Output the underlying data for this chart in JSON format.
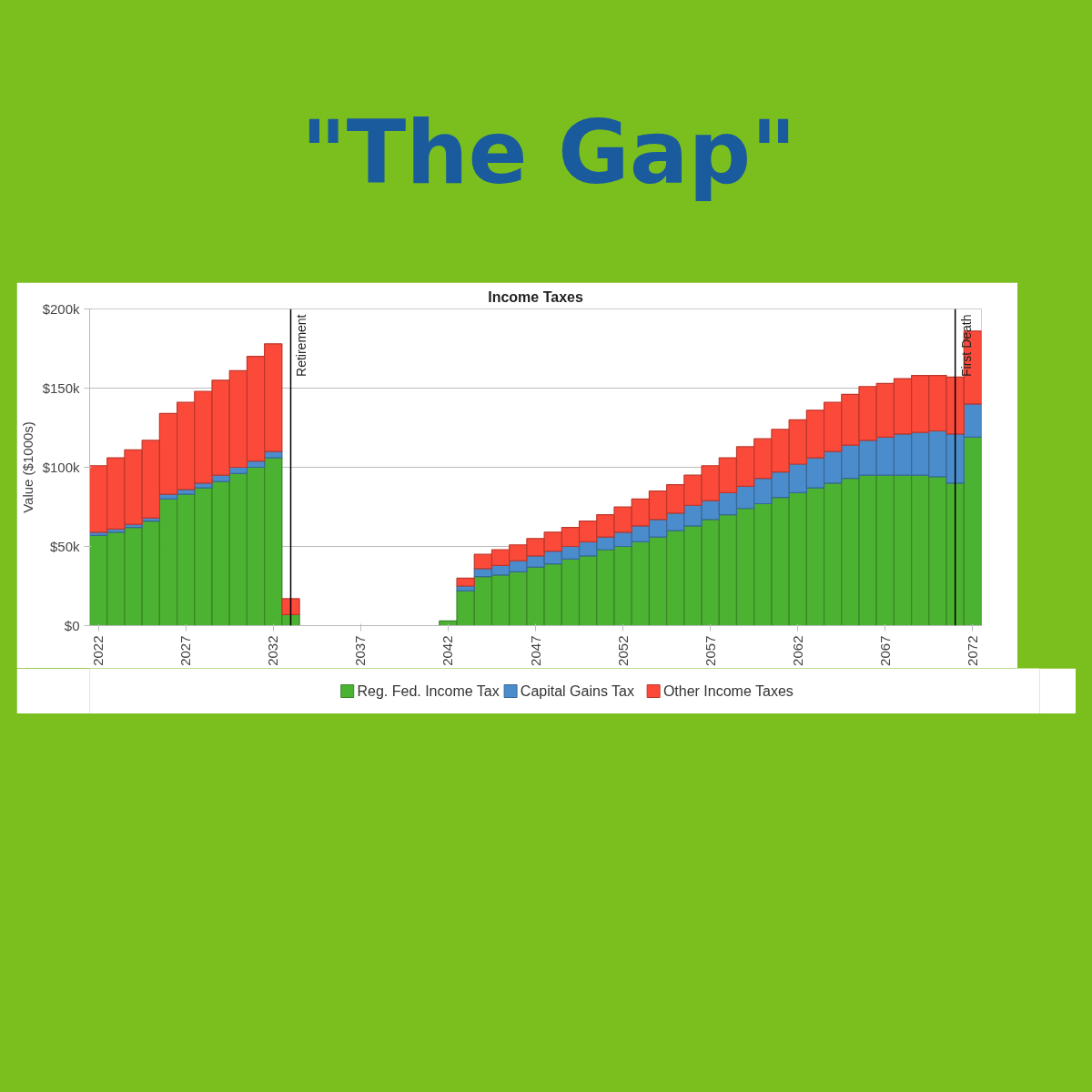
{
  "chart_data": {
    "type": "bar",
    "title": "\"The Gap\"",
    "subtitle": "Income Taxes",
    "ylabel": "Value ($1000s)",
    "stacked": true,
    "x": [
      2022,
      2023,
      2024,
      2025,
      2026,
      2027,
      2028,
      2029,
      2030,
      2031,
      2032,
      2033,
      2034,
      2035,
      2036,
      2037,
      2038,
      2039,
      2040,
      2041,
      2042,
      2043,
      2044,
      2045,
      2046,
      2047,
      2048,
      2049,
      2050,
      2051,
      2052,
      2053,
      2054,
      2055,
      2056,
      2057,
      2058,
      2059,
      2060,
      2061,
      2062,
      2063,
      2064,
      2065,
      2066,
      2067,
      2068,
      2069,
      2070,
      2071,
      2072
    ],
    "series": [
      {
        "name": "Reg. Fed. Income Tax",
        "color": "#4cb232",
        "values": [
          57,
          59,
          62,
          66,
          80,
          83,
          87,
          91,
          96,
          100,
          106,
          7,
          null,
          null,
          null,
          null,
          null,
          null,
          null,
          null,
          3,
          22,
          31,
          32,
          34,
          37,
          39,
          42,
          44,
          48,
          50,
          53,
          56,
          60,
          63,
          67,
          70,
          74,
          77,
          81,
          84,
          87,
          90,
          93,
          95,
          95,
          95,
          95,
          94,
          90,
          119
        ]
      },
      {
        "name": "Capital Gains Tax",
        "color": "#4a8ccc",
        "values": [
          2,
          2,
          2,
          2,
          3,
          3,
          3,
          4,
          4,
          4,
          4,
          null,
          null,
          null,
          null,
          null,
          null,
          null,
          null,
          null,
          null,
          3,
          5,
          6,
          7,
          7,
          8,
          8,
          9,
          8,
          9,
          10,
          11,
          11,
          13,
          12,
          14,
          14,
          16,
          16,
          18,
          19,
          20,
          21,
          22,
          24,
          26,
          27,
          29,
          31,
          21
        ]
      },
      {
        "name": "Other Income Taxes",
        "color": "#fc4a3a",
        "values": [
          42,
          45,
          47,
          49,
          51,
          55,
          58,
          60,
          61,
          66,
          68,
          10,
          null,
          null,
          null,
          null,
          null,
          null,
          null,
          null,
          null,
          5,
          9,
          10,
          10,
          11,
          12,
          12,
          13,
          14,
          16,
          17,
          18,
          18,
          19,
          22,
          22,
          25,
          25,
          27,
          28,
          30,
          31,
          32,
          34,
          34,
          35,
          36,
          35,
          36,
          46
        ]
      }
    ],
    "xlim": [
      2021.5,
      2072.5
    ],
    "xticks": [
      2022,
      2027,
      2032,
      2037,
      2042,
      2047,
      2052,
      2057,
      2062,
      2067,
      2072
    ],
    "ylim": [
      0,
      200
    ],
    "yticks": [
      {
        "value": 0,
        "label": "$0"
      },
      {
        "value": 50,
        "label": "$50k"
      },
      {
        "value": 100,
        "label": "$100k"
      },
      {
        "value": 150,
        "label": "$150k"
      },
      {
        "value": 200,
        "label": "$200k"
      }
    ],
    "grid": "y",
    "legend": "bottom",
    "ref_lines": [
      {
        "axis": "x",
        "value": 2033,
        "label": "Retirement",
        "color": "#000000"
      },
      {
        "axis": "x",
        "value": 2071,
        "label": "First Death",
        "color": "#000000"
      }
    ]
  }
}
